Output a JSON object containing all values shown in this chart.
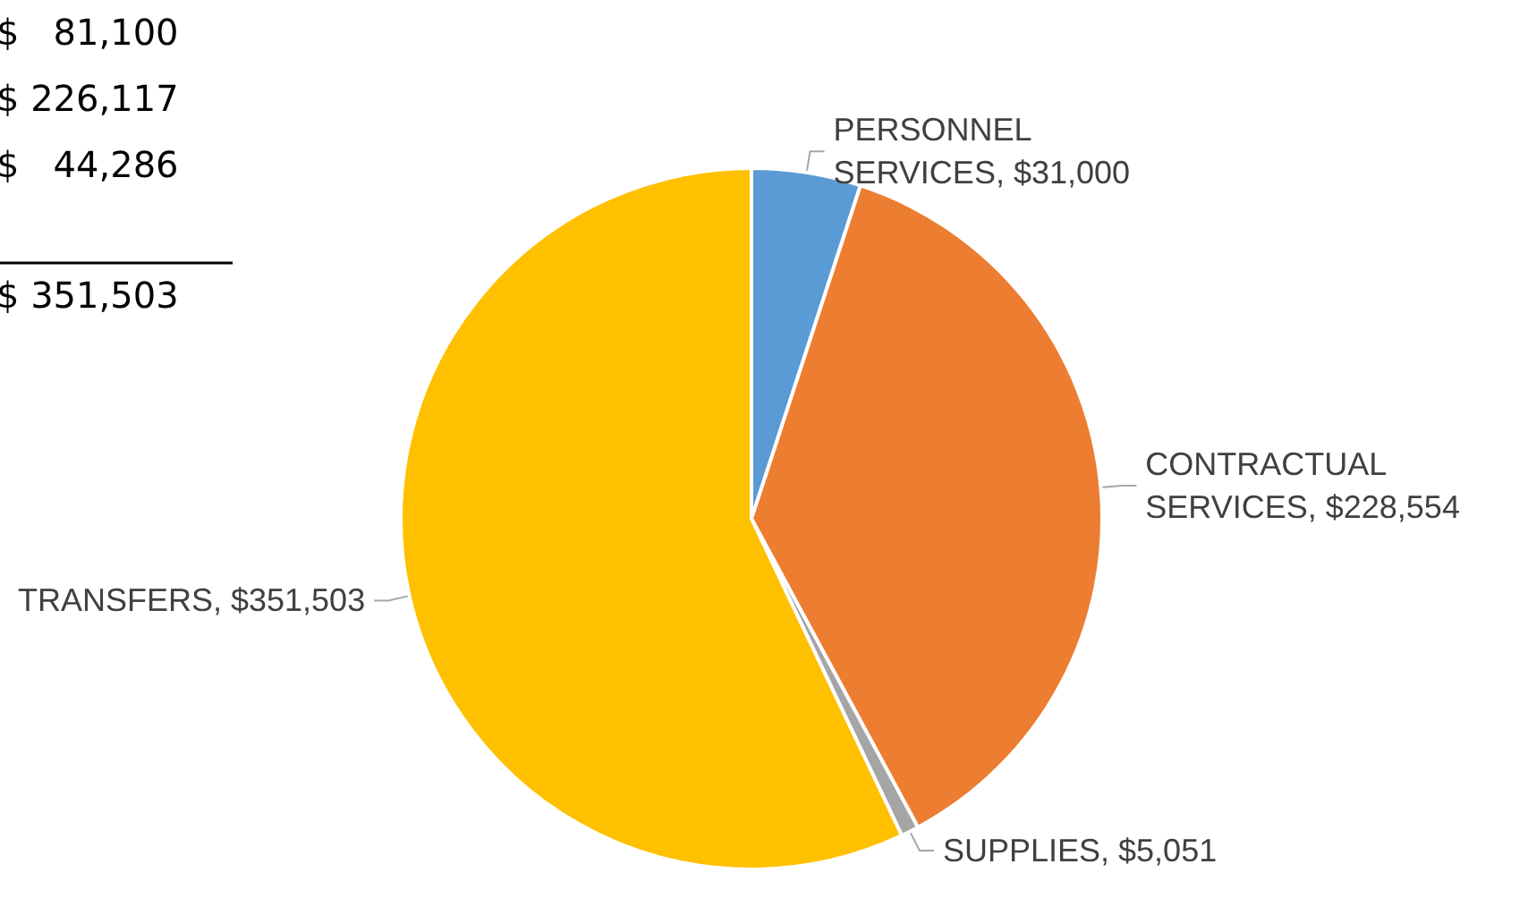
{
  "chart_data": {
    "type": "pie",
    "categories": [
      "PERSONNEL SERVICES",
      "CONTRACTUAL SERVICES",
      "SUPPLIES",
      "TRANSFERS"
    ],
    "values": [
      31000,
      228554,
      5051,
      351503
    ],
    "value_labels": [
      "$31,000",
      "$228,554",
      "$5,051",
      "$351,503"
    ],
    "colors": [
      "#5b9bd5",
      "#ed7d31",
      "#a5a5a5",
      "#ffc000"
    ],
    "legend": false,
    "annotations": [
      "$   81,100",
      "$ 226,117",
      "$   44,286",
      "$ 351,503"
    ]
  }
}
